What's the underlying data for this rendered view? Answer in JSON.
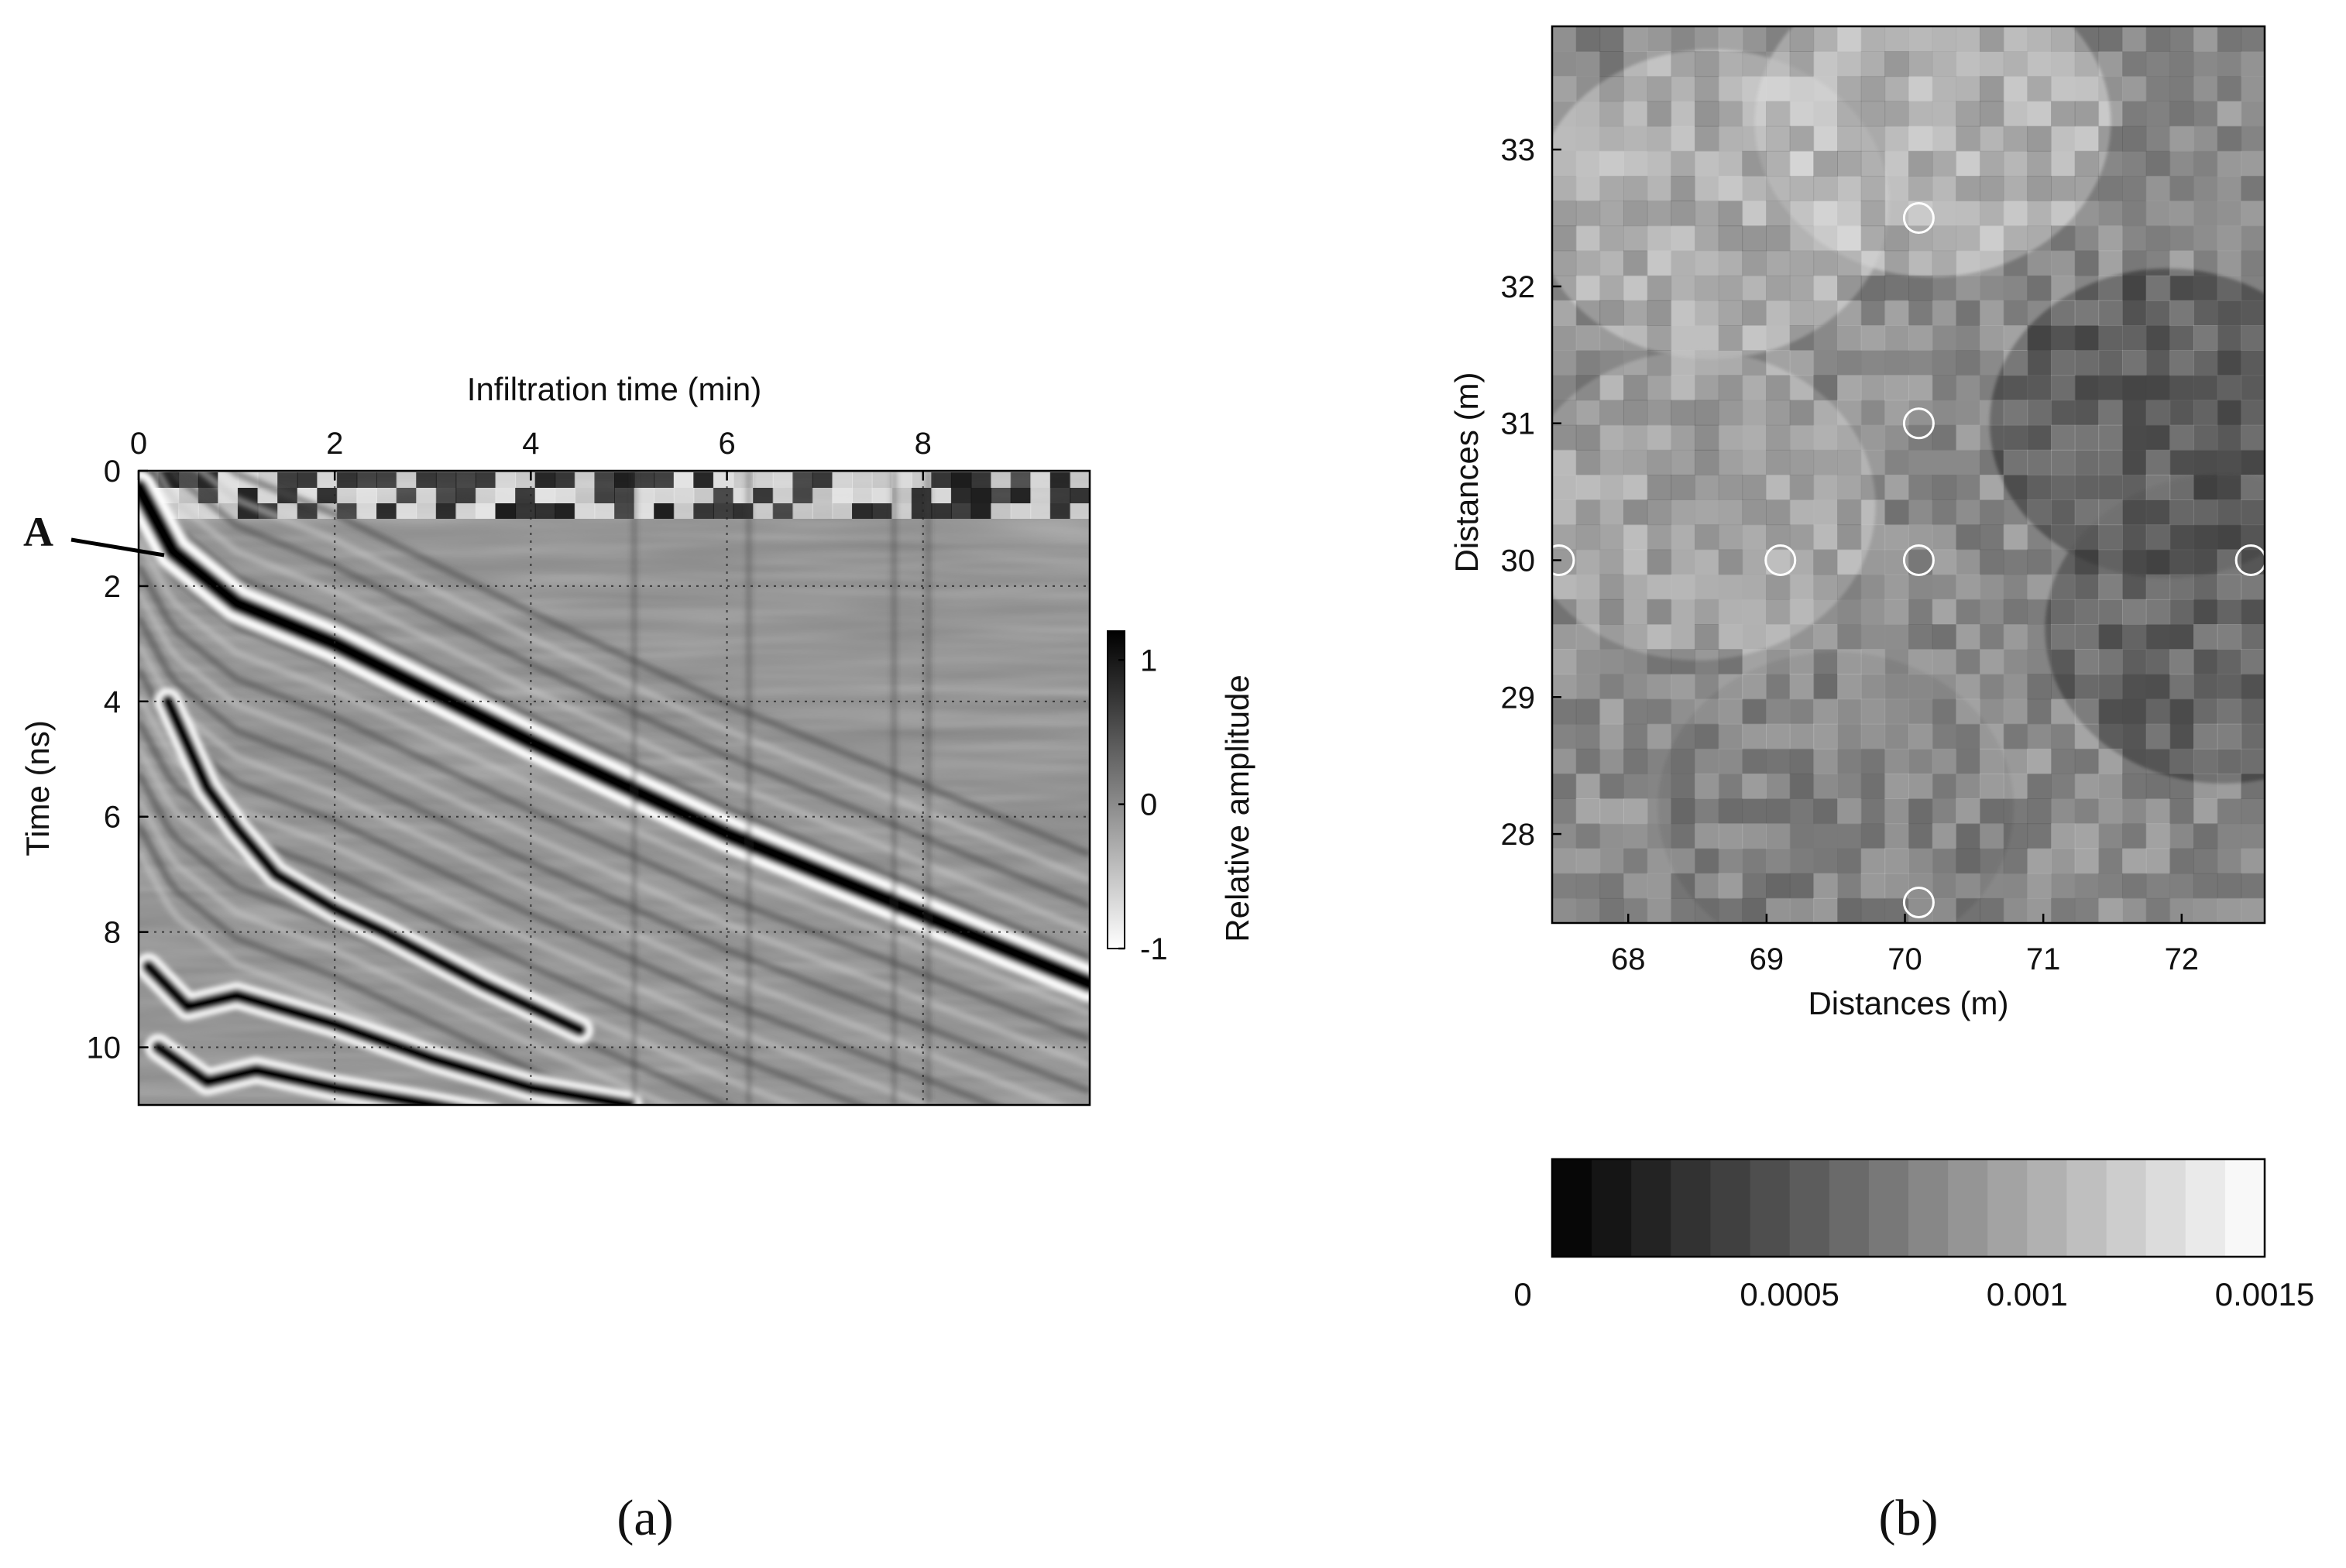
{
  "chart_data": [
    {
      "type": "heatmap",
      "panel_label": "(a)",
      "xlabel": "Infiltration time (min)",
      "ylabel": "Time (ns)",
      "xlim": [
        0,
        9.7
      ],
      "ylim": [
        0,
        11
      ],
      "x_ticks": [
        0,
        2,
        4,
        6,
        8
      ],
      "y_ticks": [
        0,
        2,
        4,
        6,
        8,
        10
      ],
      "x_tick_labels": [
        "0",
        "2",
        "4",
        "6",
        "8"
      ],
      "y_tick_labels": [
        "0",
        "2",
        "4",
        "6",
        "8",
        "10"
      ],
      "grid": true,
      "x_axis_position": "top",
      "y_axis_reversed": true,
      "colorbar": {
        "label": "Relative amplitude",
        "ticks": [
          1,
          0,
          -1
        ],
        "tick_labels": [
          "1",
          "0",
          "-1"
        ],
        "range": [
          -1,
          1.2
        ],
        "colors": [
          "#ffffff",
          "#000000"
        ]
      },
      "annotation": {
        "text": "A",
        "x": 0.35,
        "y": 1.4
      },
      "reflection_traces": [
        {
          "x": [
            0,
            0.35,
            1.0,
            2.0,
            4.0,
            6.0,
            8.0,
            9.7
          ],
          "y": [
            0.3,
            1.4,
            2.3,
            3.0,
            4.7,
            6.3,
            7.7,
            8.9
          ]
        },
        {
          "x": [
            0.3,
            0.7,
            1.0,
            1.4,
            2.0,
            2.5,
            3.5,
            4.5
          ],
          "y": [
            4.0,
            5.5,
            6.2,
            7.0,
            7.6,
            8.0,
            8.9,
            9.7
          ]
        },
        {
          "x": [
            0.1,
            0.5,
            1.0,
            1.4,
            2.0,
            3.0,
            4.0,
            5.0
          ],
          "y": [
            8.6,
            9.3,
            9.1,
            9.3,
            9.6,
            10.2,
            10.7,
            11.0
          ]
        },
        {
          "x": [
            0.2,
            0.7,
            1.2,
            2.0,
            3.0,
            3.6
          ],
          "y": [
            10.0,
            10.6,
            10.4,
            10.7,
            11.0,
            11.2
          ]
        }
      ]
    },
    {
      "type": "heatmap",
      "panel_label": "(b)",
      "xlabel": "Distances (m)",
      "ylabel": "Distances (m)",
      "xlim": [
        67.45,
        72.6
      ],
      "ylim": [
        27.35,
        33.9
      ],
      "x_ticks": [
        68,
        69,
        70,
        71,
        72
      ],
      "y_ticks": [
        28,
        29,
        30,
        31,
        32,
        33
      ],
      "x_tick_labels": [
        "68",
        "69",
        "70",
        "71",
        "72"
      ],
      "y_tick_labels": [
        "28",
        "29",
        "30",
        "31",
        "32",
        "33"
      ],
      "grid": false,
      "colorbar": {
        "orientation": "horizontal",
        "range": [
          0,
          0.0015
        ],
        "ticks": [
          0,
          0.0005,
          0.001,
          0.0015
        ],
        "tick_labels": [
          "0",
          "0.0005",
          "0.001",
          "0.0015"
        ],
        "colors": [
          "#000000",
          "#ffffff"
        ]
      },
      "markers": {
        "shape": "circle",
        "color": "#ffffff",
        "points": [
          {
            "x": 70.1,
            "y": 32.5
          },
          {
            "x": 70.1,
            "y": 31.0
          },
          {
            "x": 67.5,
            "y": 30.0
          },
          {
            "x": 69.1,
            "y": 30.0
          },
          {
            "x": 70.1,
            "y": 30.0
          },
          {
            "x": 72.5,
            "y": 30.0
          },
          {
            "x": 70.1,
            "y": 27.5
          }
        ]
      },
      "regions": [
        {
          "name": "bright-top-left",
          "center": [
            68.6,
            32.6
          ],
          "value": 0.0012
        },
        {
          "name": "bright-top-center",
          "center": [
            70.2,
            33.2
          ],
          "value": 0.00125
        },
        {
          "name": "bright-left",
          "center": [
            68.5,
            30.4
          ],
          "value": 0.0011
        },
        {
          "name": "dark-right",
          "center": [
            71.9,
            31.0
          ],
          "value": 0.0003
        },
        {
          "name": "dark-right-lower",
          "center": [
            72.3,
            29.5
          ],
          "value": 0.00035
        },
        {
          "name": "mid-bottom",
          "center": [
            69.5,
            28.2
          ],
          "value": 0.0007
        }
      ]
    }
  ]
}
